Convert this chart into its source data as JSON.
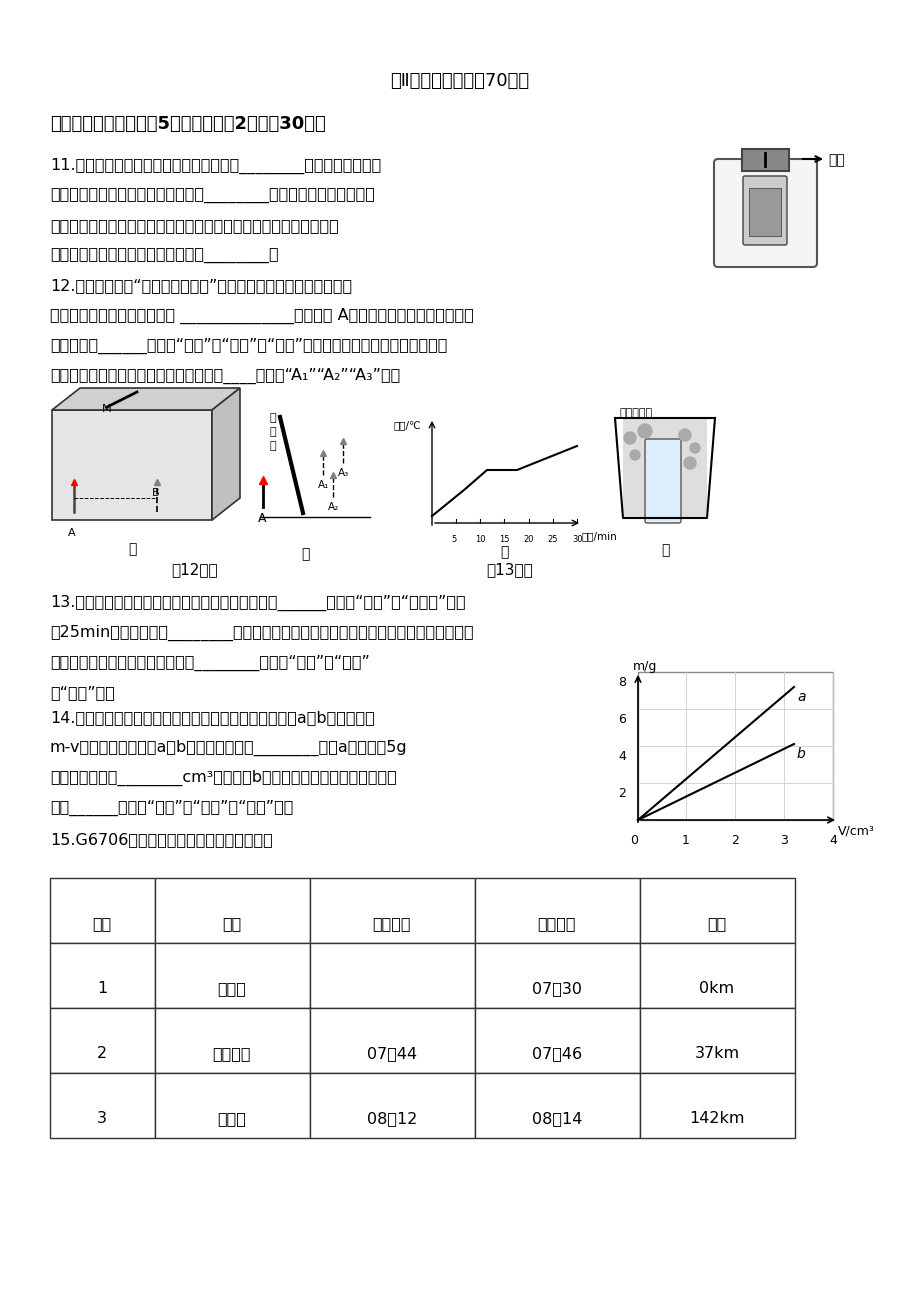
{
  "background_color": "#ffffff",
  "page_width": 9.2,
  "page_height": 13.02,
  "title": "卷Ⅱ（非选择题，共70分）",
  "section_title": "二、填空题（本大题共5个小题，每癲2分，共30分）",
  "q11_line1": "11.夜深了，把电视的声音关小点，这是从________减小噪声，从声音",
  "q11_line2": "的特性的角度分析，这是减小声音的________。把正在响鈴的手机放在",
  "q11_line3": "如图所示的玻璃罩内，逐渐抽出玻璃罩内空气的过程中，会听到鈴声",
  "q11_line4": "逐渐减弱，这表明，声音的传播需要________。",
  "q12_line1": "12.如图甲是探究“平面镜成像特点”的实验装置图。实验中，采用透",
  "q12_line2": "明薄玻璃板的目的是便于确定 ______________；将蜡烛 A远离玻璃板一段距离，蜡烛的",
  "q12_line3": "像的大小将______（选填“变大”、“变小”或“不变”）；如果玻璃板没有与桌面垂直，",
  "q12_line4": "而是如图所示倾斜，蜡烛的像对应图乙中____（选填“A₁”“A₂”“A₃”）。",
  "fig12_label": "第12题图",
  "fig13_label": "第13题图",
  "q13_line1": "13.根据如图所示的某物质凝固图像，可知该物质为______（选填“晶体”或“非晶体”），",
  "q13_line2": "第25min时该物质处于________态；若将装有冰水混合物的试管放入正在熳化的该物质中",
  "q13_line3": "（如图乙），则试管内冰的质量将________（选填“变大”、“变小”",
  "q13_line4": "或“不变”）。",
  "q14_line1": "14.小明在探究不同物质的质量与体积的关系时，绘制了a、b两种物质的",
  "q14_line2": "m-v图象，如图所示，a、b密度大小之比是________；当a的质量是5g",
  "q14_line3": "时，它的体积是________cm³。如果把b物质砍去一部分，则剩下部分的",
  "q14_line4": "密度______（选填“变大”、“不变”或“变小”）。",
  "q15_line1": "15.G6706次高速列车运行时刻表如表所示。",
  "table_headers": [
    "站次",
    "站名",
    "到达时间",
    "开车时间",
    "里程"
  ],
  "table_rows": [
    [
      "1",
      "石家庄",
      "",
      "07：30",
      "0km"
    ],
    [
      "2",
      "正定机场",
      "07：44",
      "07：46",
      "37km"
    ],
    [
      "3",
      "保定东",
      "08：12",
      "08：14",
      "142km"
    ]
  ],
  "pumping_label": "抽气"
}
